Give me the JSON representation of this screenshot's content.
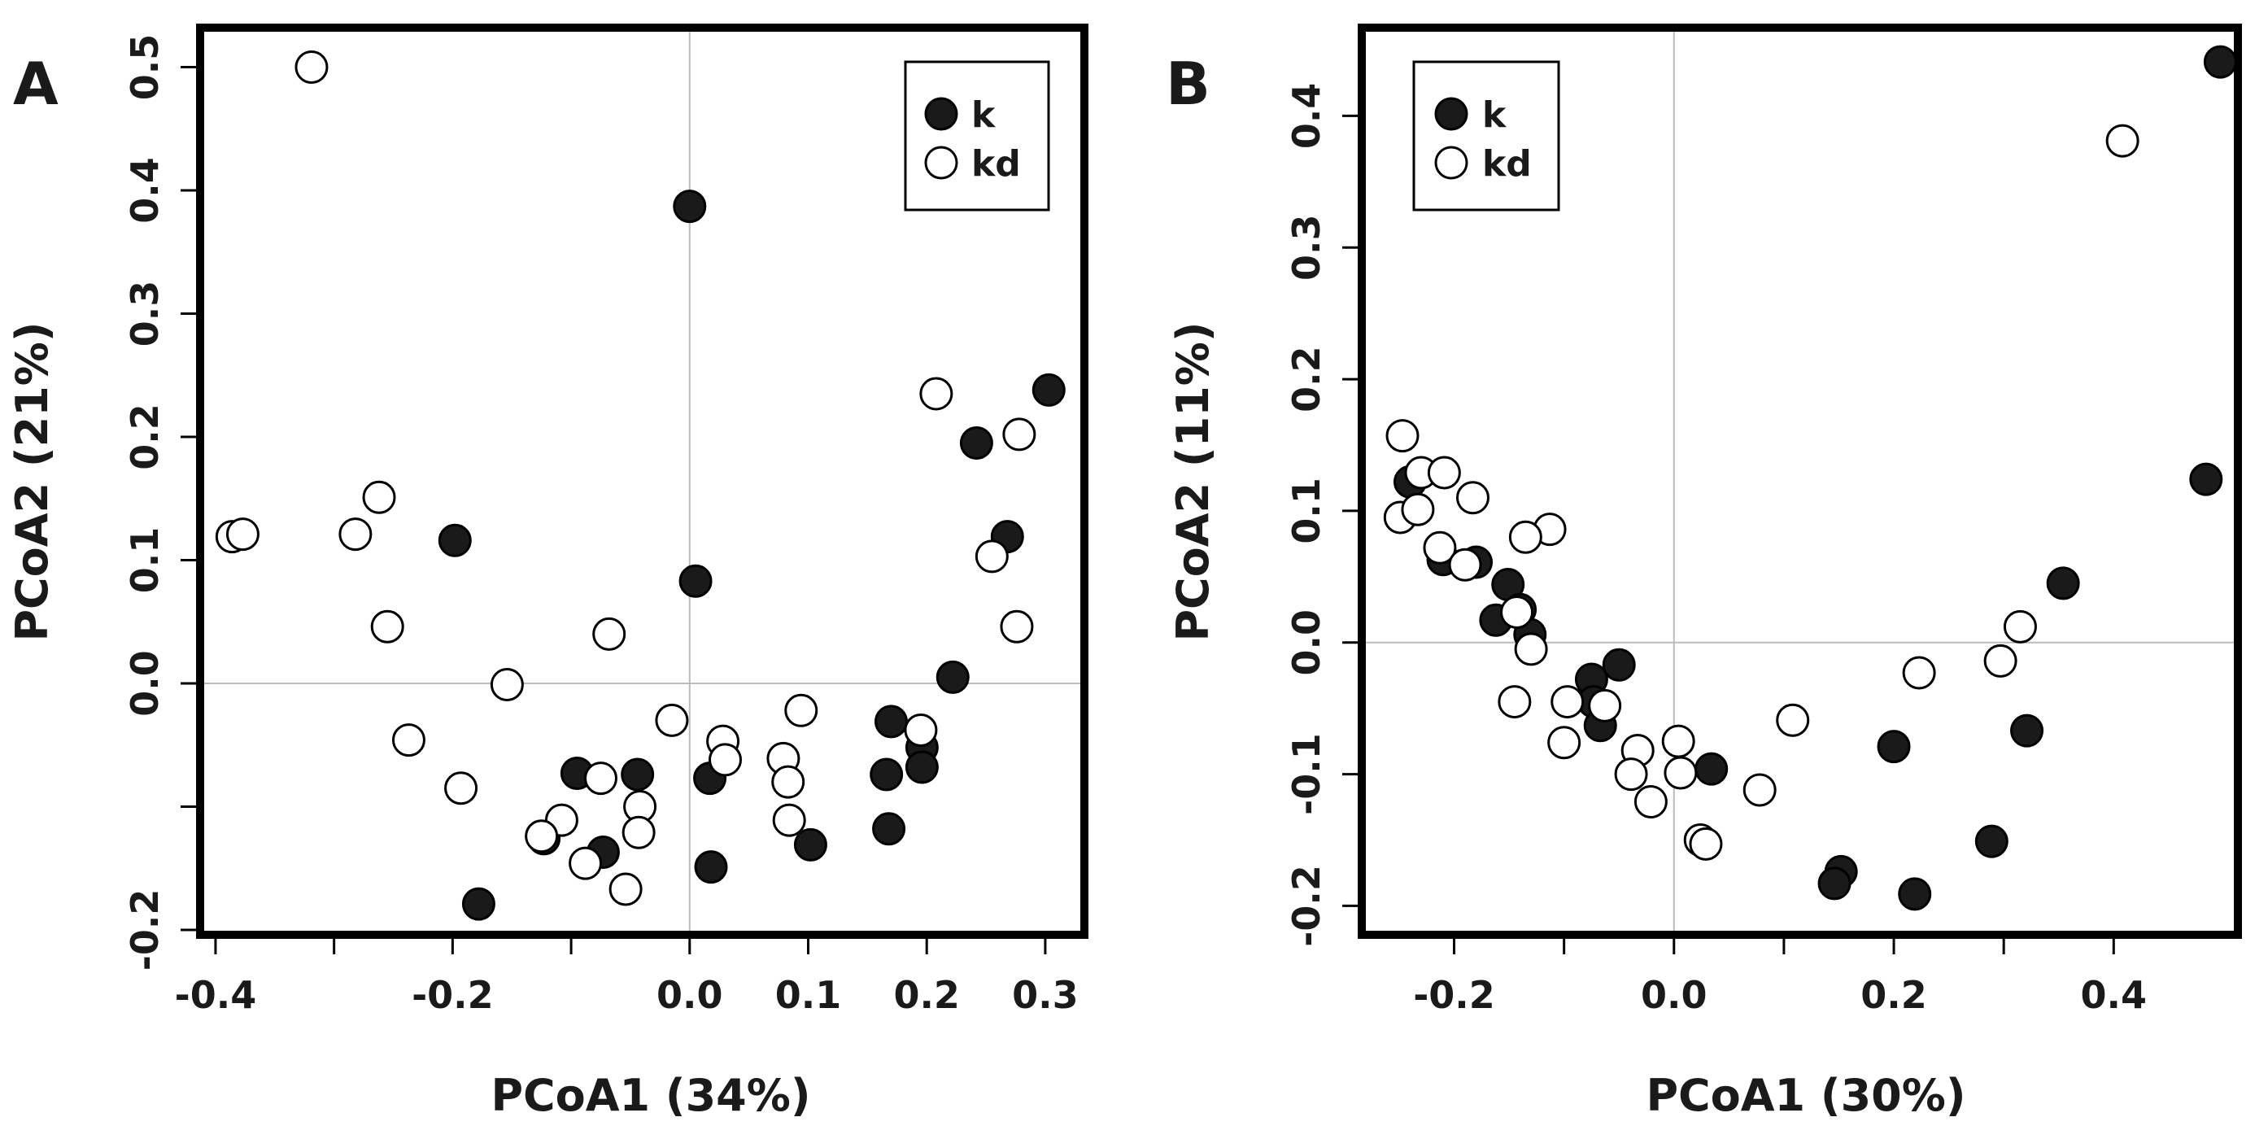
{
  "colors": {
    "filled": "#1a1a1a",
    "open": "#ffffff",
    "frame": "#000000",
    "refline": "#bbbbbb"
  },
  "chart_data": [
    {
      "type": "scatter",
      "panel_label": "A",
      "xlabel": "PCoA1 (34%)",
      "ylabel": "PCoA2 (21%)",
      "xlim": [
        -0.413,
        0.333
      ],
      "ylim": [
        -0.204,
        0.532
      ],
      "x_ticks": [
        -0.4,
        -0.3,
        -0.2,
        -0.1,
        0.0,
        0.1,
        0.2,
        0.3
      ],
      "x_tick_labels": [
        "-0.4",
        "",
        "-0.2",
        "",
        "0.0",
        "0.1",
        "0.2",
        "0.3"
      ],
      "y_ticks": [
        -0.2,
        -0.1,
        0.0,
        0.1,
        0.2,
        0.3,
        0.4,
        0.5
      ],
      "y_tick_labels": [
        "-0.2",
        "",
        "0.0",
        "0.1",
        "0.2",
        "0.3",
        "0.4",
        "0.5"
      ],
      "reference_lines": {
        "x": 0,
        "y": 0
      },
      "legend_position": "top-right",
      "series": [
        {
          "name": "k",
          "marker": "filled",
          "points": [
            {
              "x": 0.0,
              "y": 0.387
            },
            {
              "x": 0.303,
              "y": 0.238
            },
            {
              "x": 0.242,
              "y": 0.195
            },
            {
              "x": 0.268,
              "y": 0.119
            },
            {
              "x": -0.198,
              "y": 0.116
            },
            {
              "x": 0.005,
              "y": 0.083
            },
            {
              "x": 0.222,
              "y": 0.005
            },
            {
              "x": 0.17,
              "y": -0.031
            },
            {
              "x": 0.196,
              "y": -0.052
            },
            {
              "x": 0.196,
              "y": -0.068
            },
            {
              "x": 0.166,
              "y": -0.074
            },
            {
              "x": -0.095,
              "y": -0.073
            },
            {
              "x": -0.044,
              "y": -0.074
            },
            {
              "x": 0.017,
              "y": -0.077
            },
            {
              "x": 0.168,
              "y": -0.118
            },
            {
              "x": -0.123,
              "y": -0.126
            },
            {
              "x": -0.073,
              "y": -0.137
            },
            {
              "x": 0.102,
              "y": -0.131
            },
            {
              "x": 0.018,
              "y": -0.149
            },
            {
              "x": -0.178,
              "y": -0.179
            }
          ]
        },
        {
          "name": "kd",
          "marker": "open",
          "points": [
            {
              "x": -0.319,
              "y": 0.5
            },
            {
              "x": 0.208,
              "y": 0.235
            },
            {
              "x": 0.278,
              "y": 0.202
            },
            {
              "x": -0.262,
              "y": 0.151
            },
            {
              "x": -0.282,
              "y": 0.121
            },
            {
              "x": -0.386,
              "y": 0.119
            },
            {
              "x": -0.377,
              "y": 0.121
            },
            {
              "x": 0.255,
              "y": 0.103
            },
            {
              "x": -0.255,
              "y": 0.046
            },
            {
              "x": 0.276,
              "y": 0.046
            },
            {
              "x": -0.068,
              "y": 0.04
            },
            {
              "x": -0.154,
              "y": -0.001
            },
            {
              "x": -0.015,
              "y": -0.03
            },
            {
              "x": 0.094,
              "y": -0.022
            },
            {
              "x": 0.195,
              "y": -0.038
            },
            {
              "x": -0.237,
              "y": -0.046
            },
            {
              "x": 0.028,
              "y": -0.047
            },
            {
              "x": 0.03,
              "y": -0.062
            },
            {
              "x": 0.079,
              "y": -0.061
            },
            {
              "x": -0.075,
              "y": -0.077
            },
            {
              "x": 0.083,
              "y": -0.08
            },
            {
              "x": -0.193,
              "y": -0.085
            },
            {
              "x": -0.042,
              "y": -0.1
            },
            {
              "x": 0.084,
              "y": -0.111
            },
            {
              "x": -0.108,
              "y": -0.111
            },
            {
              "x": -0.043,
              "y": -0.121
            },
            {
              "x": -0.125,
              "y": -0.124
            },
            {
              "x": -0.088,
              "y": -0.146
            },
            {
              "x": -0.054,
              "y": -0.167
            }
          ]
        }
      ]
    },
    {
      "type": "scatter",
      "panel_label": "B",
      "xlabel": "PCoA1 (30%)",
      "ylabel": "PCoA2 (11%)",
      "xlim": [
        -0.284,
        0.513
      ],
      "ylim": [
        -0.222,
        0.467
      ],
      "x_ticks": [
        -0.2,
        -0.1,
        0.0,
        0.1,
        0.2,
        0.3,
        0.4
      ],
      "x_tick_labels": [
        "-0.2",
        "",
        "0.0",
        "",
        "0.2",
        "",
        "0.4"
      ],
      "y_ticks": [
        -0.2,
        -0.1,
        0.0,
        0.1,
        0.2,
        0.3,
        0.4
      ],
      "y_tick_labels": [
        "-0.2",
        "-0.1",
        "0.0",
        "0.1",
        "0.2",
        "0.3",
        "0.4"
      ],
      "reference_lines": {
        "x": 0,
        "y": 0
      },
      "legend_position": "top-left",
      "series": [
        {
          "name": "k",
          "marker": "filled",
          "points": [
            {
              "x": 0.497,
              "y": 0.441
            },
            {
              "x": 0.484,
              "y": 0.124
            },
            {
              "x": -0.24,
              "y": 0.122
            },
            {
              "x": -0.21,
              "y": 0.063
            },
            {
              "x": -0.18,
              "y": 0.061
            },
            {
              "x": -0.151,
              "y": 0.044
            },
            {
              "x": 0.354,
              "y": 0.045
            },
            {
              "x": -0.14,
              "y": 0.025
            },
            {
              "x": -0.162,
              "y": 0.017
            },
            {
              "x": -0.131,
              "y": 0.006
            },
            {
              "x": -0.05,
              "y": -0.017
            },
            {
              "x": -0.075,
              "y": -0.028
            },
            {
              "x": -0.073,
              "y": -0.045
            },
            {
              "x": -0.067,
              "y": -0.063
            },
            {
              "x": 0.321,
              "y": -0.067
            },
            {
              "x": 0.2,
              "y": -0.079
            },
            {
              "x": 0.034,
              "y": -0.096
            },
            {
              "x": 0.289,
              "y": -0.151
            },
            {
              "x": 0.152,
              "y": -0.174
            },
            {
              "x": 0.146,
              "y": -0.183
            },
            {
              "x": 0.219,
              "y": -0.191
            }
          ]
        },
        {
          "name": "kd",
          "marker": "open",
          "points": [
            {
              "x": 0.408,
              "y": 0.381
            },
            {
              "x": -0.247,
              "y": 0.157
            },
            {
              "x": -0.23,
              "y": 0.129
            },
            {
              "x": -0.209,
              "y": 0.129
            },
            {
              "x": -0.183,
              "y": 0.11
            },
            {
              "x": -0.249,
              "y": 0.095
            },
            {
              "x": -0.233,
              "y": 0.101
            },
            {
              "x": -0.113,
              "y": 0.086
            },
            {
              "x": -0.135,
              "y": 0.08
            },
            {
              "x": -0.213,
              "y": 0.072
            },
            {
              "x": -0.19,
              "y": 0.059
            },
            {
              "x": -0.143,
              "y": 0.023
            },
            {
              "x": -0.13,
              "y": -0.005
            },
            {
              "x": 0.315,
              "y": 0.012
            },
            {
              "x": 0.297,
              "y": -0.014
            },
            {
              "x": 0.223,
              "y": -0.023
            },
            {
              "x": -0.145,
              "y": -0.045
            },
            {
              "x": -0.097,
              "y": -0.045
            },
            {
              "x": -0.063,
              "y": -0.048
            },
            {
              "x": 0.108,
              "y": -0.059
            },
            {
              "x": -0.1,
              "y": -0.076
            },
            {
              "x": 0.004,
              "y": -0.075
            },
            {
              "x": -0.033,
              "y": -0.082
            },
            {
              "x": -0.039,
              "y": -0.1
            },
            {
              "x": 0.006,
              "y": -0.099
            },
            {
              "x": 0.078,
              "y": -0.112
            },
            {
              "x": -0.021,
              "y": -0.121
            },
            {
              "x": 0.024,
              "y": -0.15
            },
            {
              "x": 0.029,
              "y": -0.153
            }
          ]
        }
      ]
    }
  ]
}
